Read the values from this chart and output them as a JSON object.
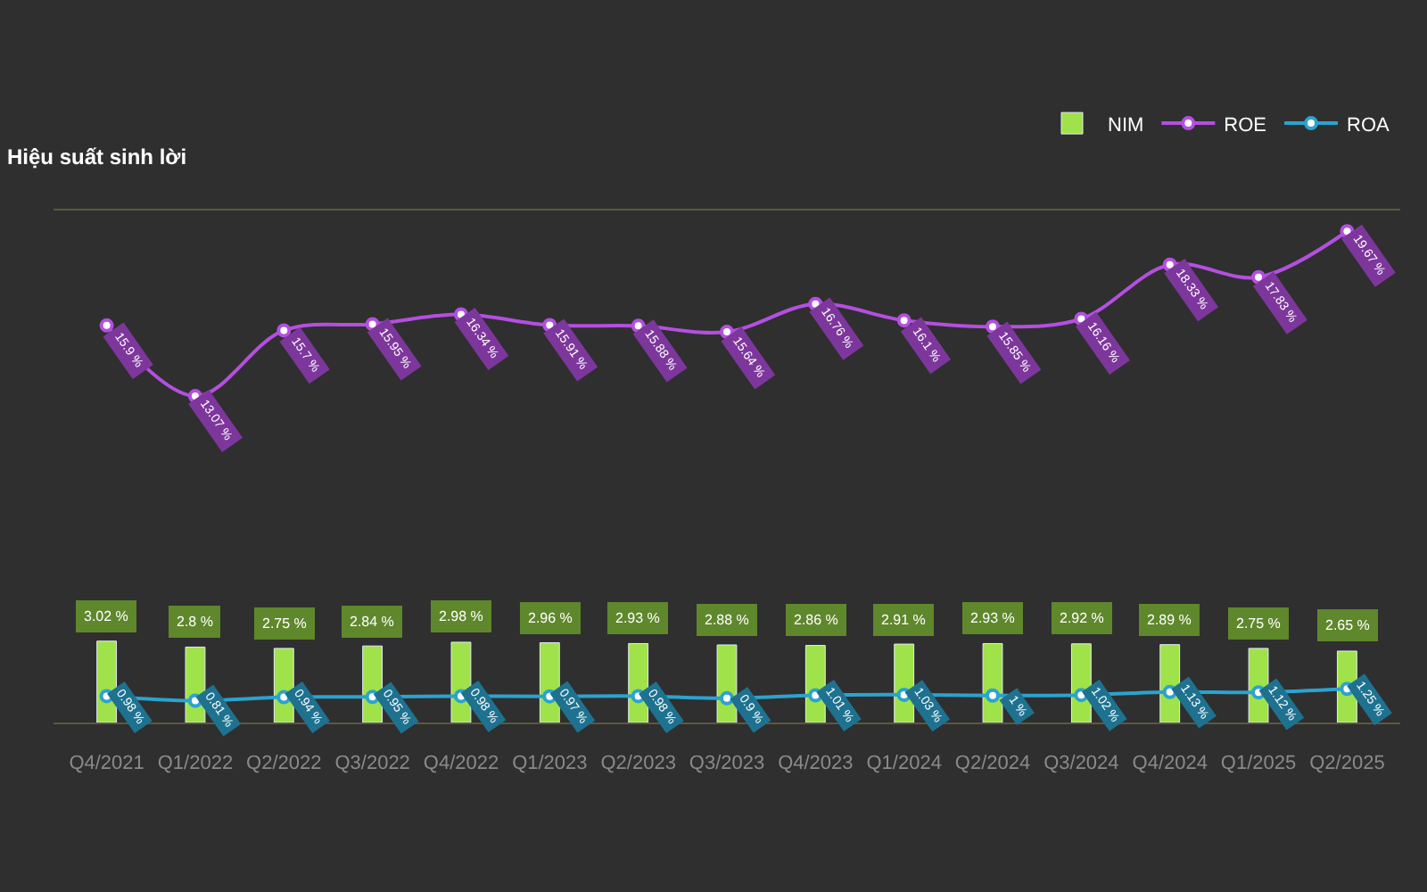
{
  "chart_data": {
    "type": "bar",
    "title": "Hiệu suất sinh lời",
    "categories": [
      "Q4/2021",
      "Q1/2022",
      "Q2/2022",
      "Q3/2022",
      "Q4/2022",
      "Q1/2023",
      "Q2/2023",
      "Q3/2023",
      "Q4/2023",
      "Q1/2024",
      "Q2/2024",
      "Q3/2024",
      "Q4/2024",
      "Q1/2025",
      "Q2/2025"
    ],
    "series": [
      {
        "name": "NIM",
        "color": "#9fe24a",
        "values": [
          3.02,
          2.8,
          2.75,
          2.84,
          2.98,
          2.96,
          2.93,
          2.88,
          2.86,
          2.91,
          2.93,
          2.92,
          2.89,
          2.75,
          2.65
        ],
        "value_labels": [
          "3.02 %",
          "2.8 %",
          "2.75 %",
          "2.84 %",
          "2.98 %",
          "2.96 %",
          "2.93 %",
          "2.88 %",
          "2.86 %",
          "2.91 %",
          "2.93 %",
          "2.92 %",
          "2.89 %",
          "2.75 %",
          "2.65 %"
        ]
      },
      {
        "name": "ROE",
        "type": "line",
        "axis": "y2",
        "color": "#b44fe0",
        "values": [
          15.9,
          13.07,
          15.7,
          15.95,
          16.34,
          15.91,
          15.88,
          15.64,
          16.76,
          16.1,
          15.85,
          16.16,
          18.33,
          17.83,
          19.67
        ],
        "value_labels": [
          "15.9 %",
          "13.07 %",
          "15.7 %",
          "15.95 %",
          "16.34 %",
          "15.91 %",
          "15.88 %",
          "15.64 %",
          "16.76 %",
          "16.1 %",
          "15.85 %",
          "16.16 %",
          "18.33 %",
          "17.83 %",
          "19.67 %"
        ]
      },
      {
        "name": "ROA",
        "type": "line",
        "color": "#2ba3cf",
        "values": [
          0.98,
          0.81,
          0.94,
          0.95,
          0.98,
          0.97,
          0.98,
          0.9,
          1.01,
          1.03,
          1,
          1.02,
          1.13,
          1.12,
          1.25
        ],
        "value_labels": [
          "0.98 %",
          "0.81 %",
          "0.94 %",
          "0.95 %",
          "0.98 %",
          "0.97 %",
          "0.98 %",
          "0.9 %",
          "1.01 %",
          "1.03 %",
          "1 %",
          "1.02 %",
          "1.13 %",
          "1.12 %",
          "1.25 %"
        ]
      }
    ],
    "ylim": [
      0,
      19
    ],
    "y2lim": [
      0,
      20.5
    ],
    "tick_labels": "x",
    "grid": false,
    "legend": "top right",
    "marker": "circle",
    "line_style": "solid"
  }
}
